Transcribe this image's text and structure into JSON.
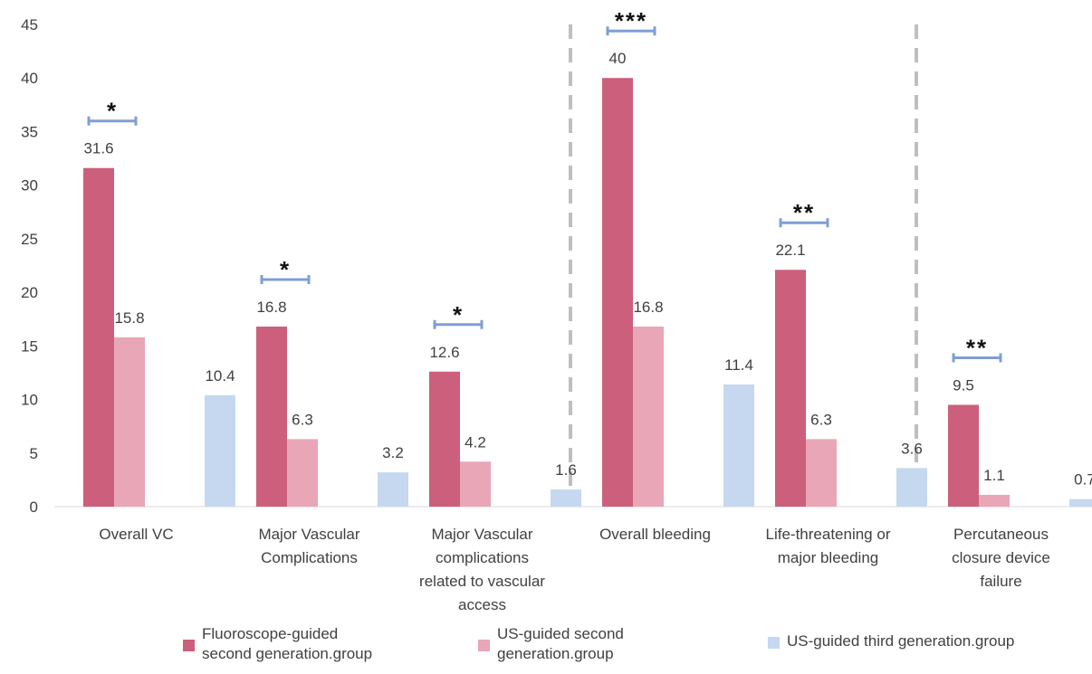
{
  "chart_data": {
    "type": "bar",
    "categories": [
      "Overall VC",
      "Major Vascular\nComplications",
      "Major Vascular\ncomplications\nrelated to vascular\naccess",
      "Overall bleeding",
      "Life-threatening or\nmajor bleeding",
      "Percutaneous\nclosure device\nfailure"
    ],
    "series": [
      {
        "name": "Fluoroscope-guided\nsecond generation.group",
        "color": "#cc5f7b",
        "values": [
          31.6,
          16.8,
          12.6,
          40,
          22.1,
          9.5
        ]
      },
      {
        "name": "US-guided second\ngeneration.group",
        "color": "#e8a6b6",
        "values": [
          15.8,
          6.3,
          4.2,
          16.8,
          6.3,
          1.1
        ]
      },
      {
        "name": "US-guided third generation.group",
        "color": "#c5d8ef",
        "values": [
          10.4,
          3.2,
          1.6,
          11.4,
          3.6,
          0.7
        ]
      }
    ],
    "data_labels": [
      [
        "31.6",
        "16.8",
        "12.6",
        "40",
        "22.1",
        "9.5"
      ],
      [
        "15.8",
        "6.3",
        "4.2",
        "16.8",
        "6.3",
        "1.1"
      ],
      [
        "10.4",
        "3.2",
        "1.6",
        "11.4",
        "3.6",
        "0.7"
      ]
    ],
    "significance": [
      "*",
      "*",
      "*",
      "***",
      "**",
      "**"
    ],
    "significance_bracket_color": "#7f9fd4",
    "ylim": [
      0,
      45
    ],
    "yticks": [
      "0",
      "5",
      "10",
      "15",
      "20",
      "25",
      "30",
      "35",
      "40",
      "45"
    ],
    "xlabel": "",
    "ylabel": "",
    "title": "",
    "grid": false,
    "group_separators_after": [
      2,
      4
    ],
    "separator_color": "#bfbfbf",
    "legend_position": "bottom"
  }
}
